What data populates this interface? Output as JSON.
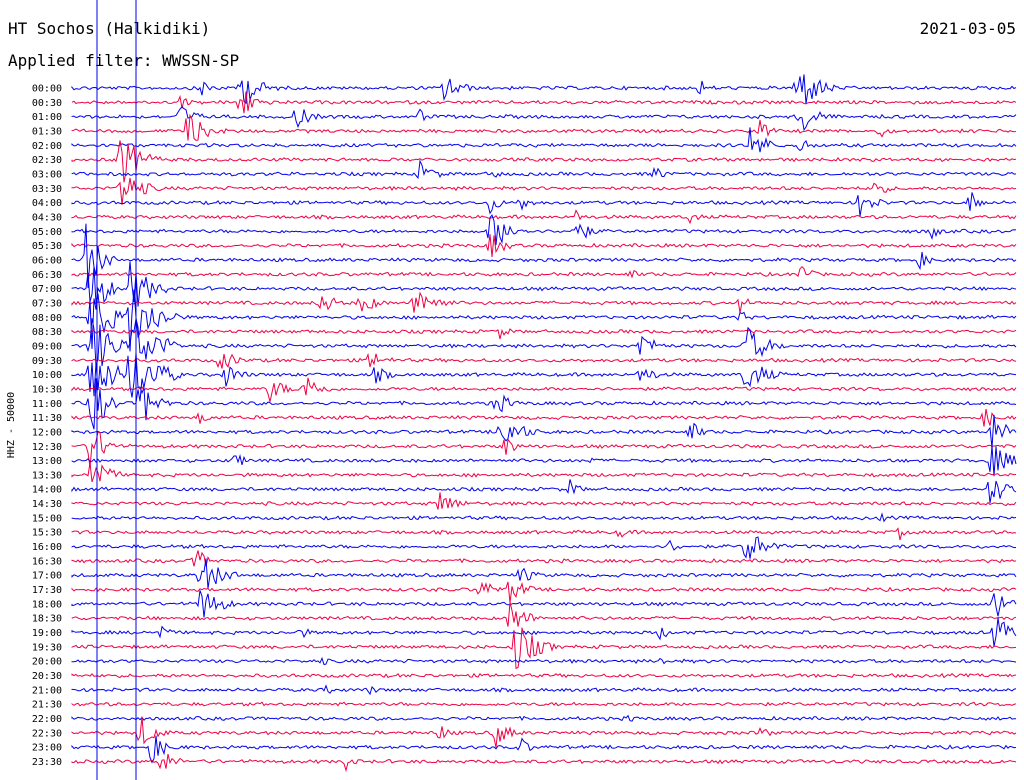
{
  "header": {
    "station": "HT Sochos (Halkidiki)",
    "date": "2021-03-05",
    "filter": "Applied filter: WWSSN-SP"
  },
  "chart_data": {
    "type": "line",
    "title": "HT Sochos (Halkidiki)",
    "subtitle": "Applied filter: WWSSN-SP",
    "date": "2021-03-05",
    "side_label": "HHZ - 50000",
    "y_ticks": [
      "00:00",
      "00:30",
      "01:00",
      "01:30",
      "02:00",
      "02:30",
      "03:00",
      "03:30",
      "04:00",
      "04:30",
      "05:00",
      "05:30",
      "06:00",
      "06:30",
      "07:00",
      "07:30",
      "08:00",
      "08:30",
      "09:00",
      "09:30",
      "10:00",
      "10:30",
      "11:00",
      "11:30",
      "12:00",
      "12:30",
      "13:00",
      "13:30",
      "14:00",
      "14:30",
      "15:00",
      "15:30",
      "16:00",
      "16:30",
      "17:00",
      "17:30",
      "18:00",
      "18:30",
      "19:00",
      "19:30",
      "20:00",
      "20:30",
      "21:00",
      "21:30",
      "22:00",
      "22:30",
      "23:00",
      "23:30"
    ],
    "trace_colors": [
      "#0000ee",
      "#ee0044"
    ],
    "grid": false
  }
}
